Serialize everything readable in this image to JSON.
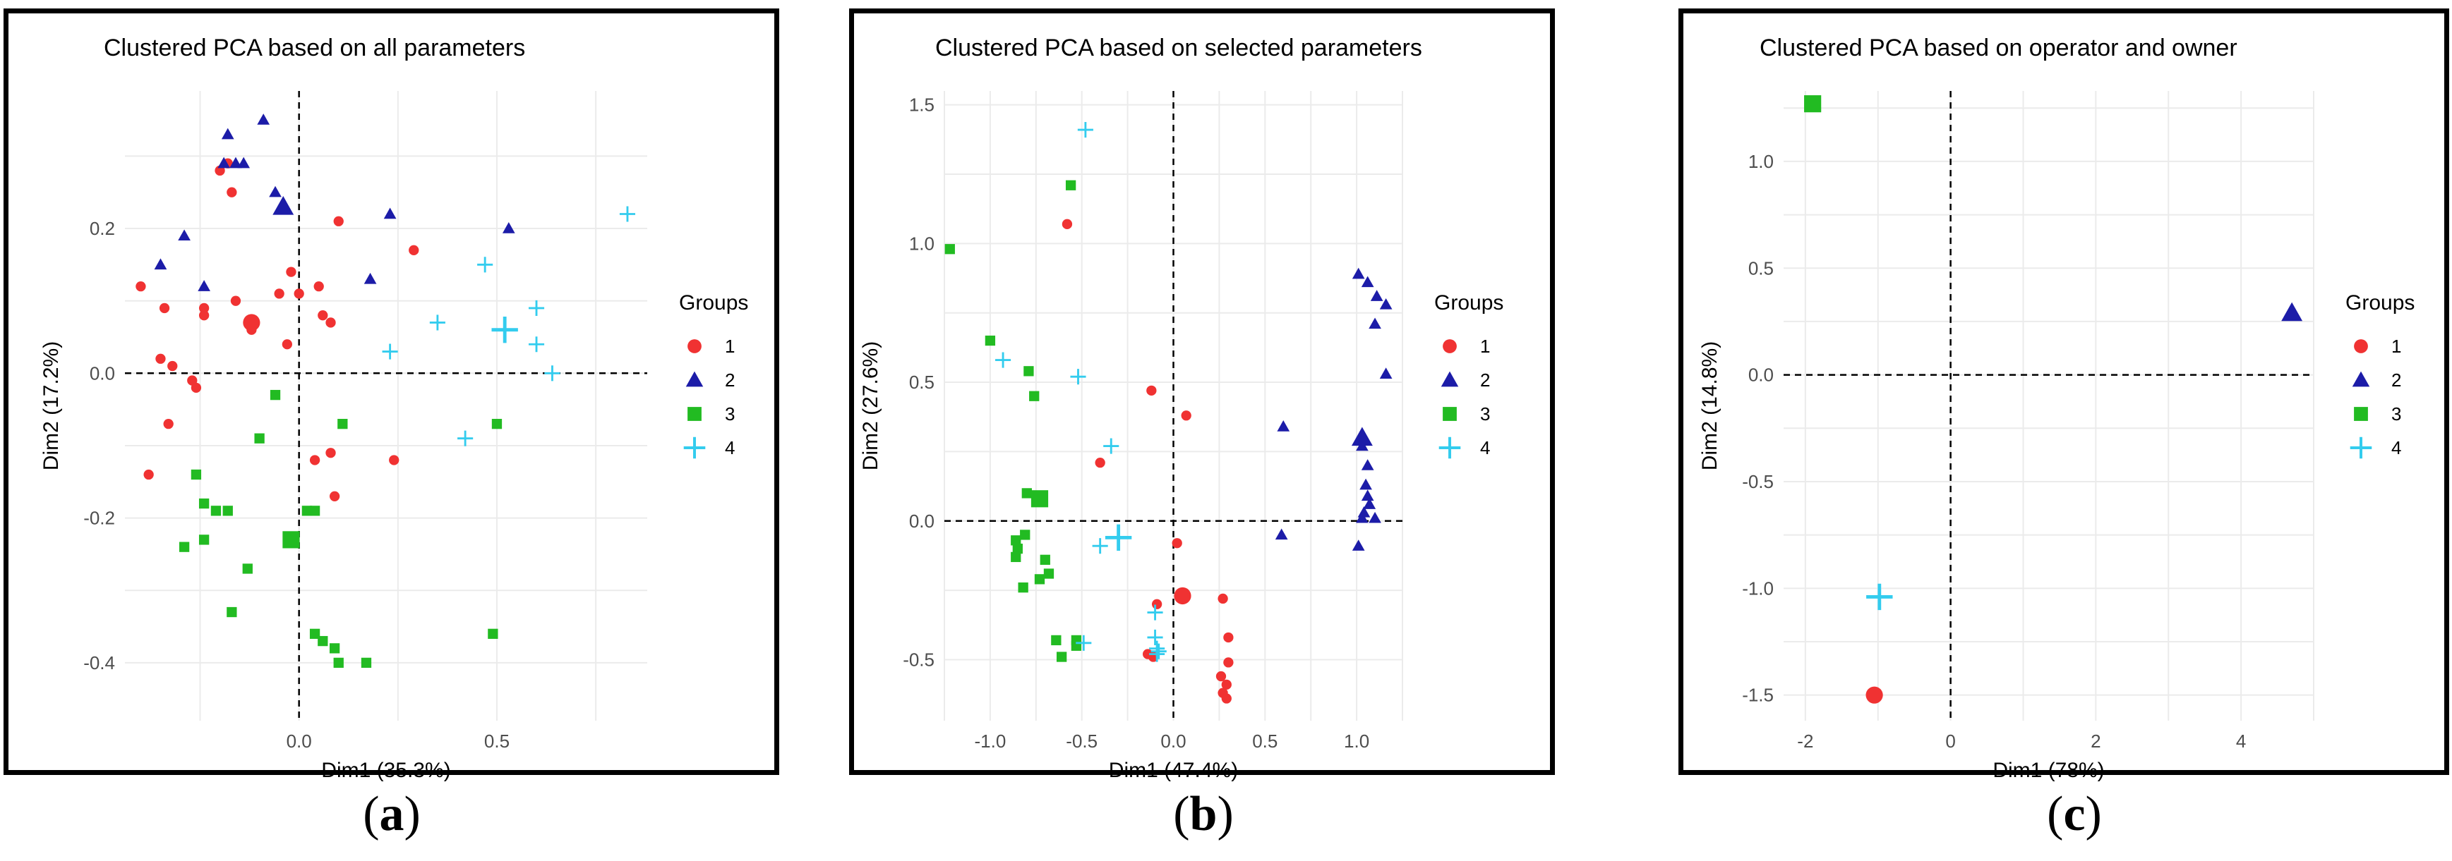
{
  "legend": {
    "title": "Groups",
    "entries": [
      "1",
      "2",
      "3",
      "4"
    ]
  },
  "colors": {
    "g1": "#f03232",
    "g2": "#1c1ca8",
    "g3": "#22bb22",
    "g4": "#33ccee"
  },
  "captions": [
    {
      "open": "(",
      "letter": "a",
      "close": ")"
    },
    {
      "open": "(",
      "letter": "b",
      "close": ")"
    },
    {
      "open": "(",
      "letter": "c",
      "close": ")"
    }
  ],
  "chart_data": [
    {
      "type": "scatter",
      "title": "Clustered PCA based on all parameters",
      "xlabel": "Dim1 (35.3%)",
      "ylabel": "Dim2 (17.2%)",
      "xlim": [
        -0.44,
        0.88
      ],
      "ylim": [
        -0.48,
        0.39
      ],
      "xticks": [
        0.0,
        0.5
      ],
      "xtick_labels": [
        "0.0",
        "0.5"
      ],
      "yticks": [
        -0.4,
        -0.2,
        0.0,
        0.2
      ],
      "ytick_labels": [
        "-0.4",
        "-0.2",
        "0.0",
        "0.2"
      ],
      "legend_position": "right",
      "groups": [
        {
          "name": "1",
          "shape": "circle",
          "points": [
            [
              -0.4,
              0.12
            ],
            [
              -0.34,
              0.09
            ],
            [
              -0.35,
              0.02
            ],
            [
              -0.32,
              0.01
            ],
            [
              -0.33,
              -0.07
            ],
            [
              -0.38,
              -0.14
            ],
            [
              -0.27,
              -0.01
            ],
            [
              -0.26,
              -0.02
            ],
            [
              -0.24,
              0.09
            ],
            [
              -0.24,
              0.08
            ],
            [
              -0.2,
              0.28
            ],
            [
              -0.18,
              0.29
            ],
            [
              -0.17,
              0.25
            ],
            [
              -0.16,
              0.1
            ],
            [
              -0.12,
              0.06
            ],
            [
              -0.05,
              0.11
            ],
            [
              -0.03,
              0.04
            ],
            [
              -0.02,
              0.14
            ],
            [
              0.0,
              0.11
            ],
            [
              0.05,
              0.12
            ],
            [
              0.06,
              0.08
            ],
            [
              0.04,
              -0.12
            ],
            [
              0.08,
              0.07
            ],
            [
              0.1,
              0.21
            ],
            [
              0.08,
              -0.11
            ],
            [
              0.09,
              -0.17
            ],
            [
              0.24,
              -0.12
            ],
            [
              0.29,
              0.17
            ]
          ],
          "center": [
            -0.12,
            0.07
          ]
        },
        {
          "name": "2",
          "shape": "triangle",
          "points": [
            [
              -0.35,
              0.15
            ],
            [
              -0.29,
              0.19
            ],
            [
              -0.24,
              0.12
            ],
            [
              -0.19,
              0.29
            ],
            [
              -0.16,
              0.29
            ],
            [
              -0.18,
              0.33
            ],
            [
              -0.09,
              0.35
            ],
            [
              -0.06,
              0.25
            ],
            [
              0.23,
              0.22
            ],
            [
              0.18,
              0.13
            ],
            [
              0.53,
              0.2
            ],
            [
              -0.14,
              0.29
            ]
          ],
          "center": [
            -0.04,
            0.23
          ]
        },
        {
          "name": "3",
          "shape": "square",
          "points": [
            [
              -0.06,
              -0.03
            ],
            [
              -0.1,
              -0.09
            ],
            [
              -0.26,
              -0.14
            ],
            [
              -0.24,
              -0.18
            ],
            [
              -0.21,
              -0.19
            ],
            [
              -0.24,
              -0.23
            ],
            [
              -0.29,
              -0.24
            ],
            [
              -0.18,
              -0.19
            ],
            [
              -0.13,
              -0.27
            ],
            [
              -0.17,
              -0.33
            ],
            [
              0.11,
              -0.07
            ],
            [
              0.02,
              -0.19
            ],
            [
              0.04,
              -0.19
            ],
            [
              0.04,
              -0.36
            ],
            [
              0.06,
              -0.37
            ],
            [
              0.09,
              -0.38
            ],
            [
              0.1,
              -0.4
            ],
            [
              0.17,
              -0.4
            ],
            [
              0.5,
              -0.07
            ],
            [
              0.49,
              -0.36
            ]
          ],
          "center": [
            -0.02,
            -0.23
          ]
        },
        {
          "name": "4",
          "shape": "plus",
          "points": [
            [
              0.23,
              0.03
            ],
            [
              0.35,
              0.07
            ],
            [
              0.47,
              0.15
            ],
            [
              0.6,
              0.09
            ],
            [
              0.6,
              0.04
            ],
            [
              0.64,
              0.0
            ],
            [
              0.42,
              -0.09
            ],
            [
              0.83,
              0.22
            ]
          ],
          "center": [
            0.52,
            0.06
          ]
        }
      ]
    },
    {
      "type": "scatter",
      "title": "Clustered PCA based on selected parameters",
      "xlabel": "Dim1 (47.4%)",
      "ylabel": "Dim2 (27.6%)",
      "xlim": [
        -1.25,
        1.25
      ],
      "ylim": [
        -0.72,
        1.55
      ],
      "xticks": [
        -1.0,
        -0.5,
        0.0,
        0.5,
        1.0
      ],
      "xtick_labels": [
        "-1.0",
        "-0.5",
        "0.0",
        "0.5",
        "1.0"
      ],
      "yticks": [
        -0.5,
        0.0,
        0.5,
        1.0,
        1.5
      ],
      "ytick_labels": [
        "-0.5",
        "0.0",
        "0.5",
        "1.0",
        "1.5"
      ],
      "legend_position": "right",
      "groups": [
        {
          "name": "1",
          "shape": "circle",
          "points": [
            [
              -0.58,
              1.07
            ],
            [
              -0.12,
              0.47
            ],
            [
              0.07,
              0.38
            ],
            [
              -0.4,
              0.21
            ],
            [
              0.02,
              -0.08
            ],
            [
              -0.09,
              -0.3
            ],
            [
              -0.11,
              -0.49
            ],
            [
              -0.14,
              -0.48
            ],
            [
              0.27,
              -0.28
            ],
            [
              0.3,
              -0.42
            ],
            [
              0.26,
              -0.56
            ],
            [
              0.3,
              -0.51
            ],
            [
              0.29,
              -0.59
            ],
            [
              0.27,
              -0.62
            ],
            [
              0.29,
              -0.64
            ]
          ],
          "center": [
            0.05,
            -0.27
          ]
        },
        {
          "name": "2",
          "shape": "triangle",
          "points": [
            [
              1.01,
              0.89
            ],
            [
              1.06,
              0.86
            ],
            [
              1.11,
              0.81
            ],
            [
              1.16,
              0.78
            ],
            [
              1.1,
              0.71
            ],
            [
              1.16,
              0.53
            ],
            [
              0.6,
              0.34
            ],
            [
              1.03,
              0.27
            ],
            [
              1.06,
              0.2
            ],
            [
              1.05,
              0.13
            ],
            [
              1.06,
              0.09
            ],
            [
              1.07,
              0.06
            ],
            [
              1.04,
              0.03
            ],
            [
              1.03,
              0.01
            ],
            [
              1.1,
              0.01
            ],
            [
              0.59,
              -0.05
            ],
            [
              1.01,
              -0.09
            ]
          ],
          "center": [
            1.03,
            0.3
          ]
        },
        {
          "name": "3",
          "shape": "square",
          "points": [
            [
              -1.22,
              0.98
            ],
            [
              -0.56,
              1.21
            ],
            [
              -1.0,
              0.65
            ],
            [
              -0.79,
              0.54
            ],
            [
              -0.76,
              0.45
            ],
            [
              -0.8,
              0.1
            ],
            [
              -0.86,
              -0.07
            ],
            [
              -0.85,
              -0.1
            ],
            [
              -0.86,
              -0.13
            ],
            [
              -0.81,
              -0.05
            ],
            [
              -0.73,
              -0.21
            ],
            [
              -0.82,
              -0.24
            ],
            [
              -0.7,
              -0.14
            ],
            [
              -0.68,
              -0.19
            ],
            [
              -0.64,
              -0.43
            ],
            [
              -0.61,
              -0.49
            ],
            [
              -0.53,
              -0.43
            ],
            [
              -0.53,
              -0.45
            ]
          ],
          "center": [
            -0.73,
            0.08
          ]
        },
        {
          "name": "4",
          "shape": "plus",
          "points": [
            [
              -0.48,
              1.41
            ],
            [
              -0.93,
              0.58
            ],
            [
              -0.52,
              0.52
            ],
            [
              -0.34,
              0.27
            ],
            [
              -0.4,
              -0.09
            ],
            [
              -0.1,
              -0.33
            ],
            [
              -0.1,
              -0.42
            ],
            [
              -0.09,
              -0.46
            ],
            [
              -0.08,
              -0.47
            ],
            [
              -0.09,
              -0.48
            ],
            [
              -0.49,
              -0.44
            ]
          ],
          "center": [
            -0.3,
            -0.06
          ]
        }
      ]
    },
    {
      "type": "scatter",
      "title": "Clustered PCA based on operator and owner",
      "xlabel": "Dim1 (78%)",
      "ylabel": "Dim2 (14.8%)",
      "xlim": [
        -2.3,
        5.0
      ],
      "ylim": [
        -1.62,
        1.33
      ],
      "xticks": [
        -2,
        0,
        2,
        4
      ],
      "xtick_labels": [
        "-2",
        "0",
        "2",
        "4"
      ],
      "yticks": [
        -1.5,
        -1.0,
        -0.5,
        0.0,
        0.5,
        1.0
      ],
      "ytick_labels": [
        "-1.5",
        "-1.0",
        "-0.5",
        "0.0",
        "0.5",
        "1.0"
      ],
      "legend_position": "right",
      "groups": [
        {
          "name": "1",
          "shape": "circle",
          "points": [],
          "center": [
            -1.05,
            -1.5
          ]
        },
        {
          "name": "2",
          "shape": "triangle",
          "points": [],
          "center": [
            4.7,
            0.29
          ]
        },
        {
          "name": "3",
          "shape": "square",
          "points": [],
          "center": [
            -1.9,
            1.27
          ]
        },
        {
          "name": "4",
          "shape": "plus",
          "points": [],
          "center": [
            -0.98,
            -1.04
          ]
        }
      ]
    }
  ]
}
